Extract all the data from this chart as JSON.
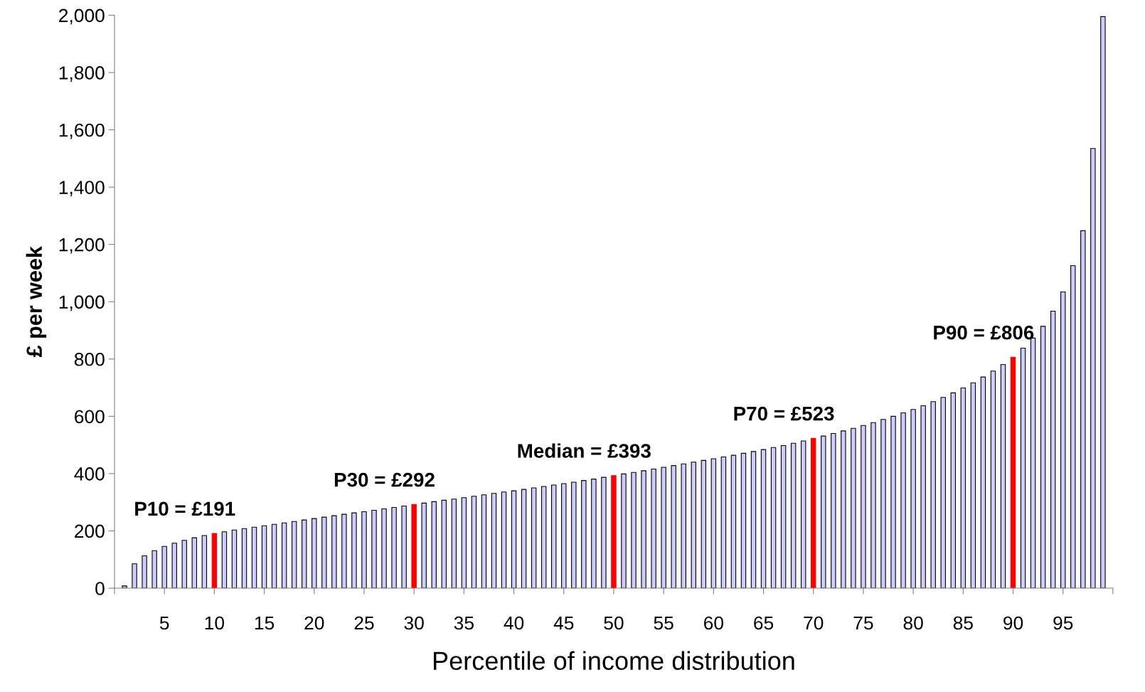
{
  "chart_data": {
    "type": "bar",
    "xlabel": "Percentile of income distribution",
    "ylabel": "£ per week",
    "x": [
      1,
      2,
      3,
      4,
      5,
      6,
      7,
      8,
      9,
      10,
      11,
      12,
      13,
      14,
      15,
      16,
      17,
      18,
      19,
      20,
      21,
      22,
      23,
      24,
      25,
      26,
      27,
      28,
      29,
      30,
      31,
      32,
      33,
      34,
      35,
      36,
      37,
      38,
      39,
      40,
      41,
      42,
      43,
      44,
      45,
      46,
      47,
      48,
      49,
      50,
      51,
      52,
      53,
      54,
      55,
      56,
      57,
      58,
      59,
      60,
      61,
      62,
      63,
      64,
      65,
      66,
      67,
      68,
      69,
      70,
      71,
      72,
      73,
      74,
      75,
      76,
      77,
      78,
      79,
      80,
      81,
      82,
      83,
      84,
      85,
      86,
      87,
      88,
      89,
      90,
      91,
      92,
      93,
      94,
      95,
      96,
      97,
      98,
      99
    ],
    "values": [
      8,
      85,
      113,
      131,
      146,
      157,
      167,
      176,
      184,
      191,
      197,
      203,
      208,
      213,
      218,
      223,
      228,
      233,
      238,
      243,
      248,
      253,
      258,
      263,
      267,
      272,
      277,
      282,
      287,
      292,
      297,
      302,
      307,
      311,
      316,
      321,
      326,
      331,
      336,
      340,
      345,
      350,
      355,
      360,
      365,
      370,
      376,
      381,
      387,
      393,
      399,
      404,
      410,
      416,
      422,
      428,
      434,
      440,
      446,
      452,
      458,
      464,
      471,
      477,
      484,
      491,
      498,
      506,
      514,
      523,
      531,
      540,
      549,
      558,
      568,
      578,
      589,
      600,
      612,
      624,
      637,
      651,
      666,
      682,
      699,
      717,
      737,
      758,
      781,
      806,
      838,
      873,
      914,
      967,
      1034,
      1126,
      1248,
      1535,
      1995
    ],
    "colors": [
      "#ccccff",
      "#ccccff",
      "#ccccff",
      "#ccccff",
      "#ccccff",
      "#ccccff",
      "#ccccff",
      "#ccccff",
      "#ccccff",
      "#ff0000",
      "#ccccff",
      "#ccccff",
      "#ccccff",
      "#ccccff",
      "#ccccff",
      "#ccccff",
      "#ccccff",
      "#ccccff",
      "#ccccff",
      "#ccccff",
      "#ccccff",
      "#ccccff",
      "#ccccff",
      "#ccccff",
      "#ccccff",
      "#ccccff",
      "#ccccff",
      "#ccccff",
      "#ccccff",
      "#ff0000",
      "#ccccff",
      "#ccccff",
      "#ccccff",
      "#ccccff",
      "#ccccff",
      "#ccccff",
      "#ccccff",
      "#ccccff",
      "#ccccff",
      "#ccccff",
      "#ccccff",
      "#ccccff",
      "#ccccff",
      "#ccccff",
      "#ccccff",
      "#ccccff",
      "#ccccff",
      "#ccccff",
      "#ccccff",
      "#ff0000",
      "#ccccff",
      "#ccccff",
      "#ccccff",
      "#ccccff",
      "#ccccff",
      "#ccccff",
      "#ccccff",
      "#ccccff",
      "#ccccff",
      "#ccccff",
      "#ccccff",
      "#ccccff",
      "#ccccff",
      "#ccccff",
      "#ccccff",
      "#ccccff",
      "#ccccff",
      "#ccccff",
      "#ccccff",
      "#ff0000",
      "#ccccff",
      "#ccccff",
      "#ccccff",
      "#ccccff",
      "#ccccff",
      "#ccccff",
      "#ccccff",
      "#ccccff",
      "#ccccff",
      "#ccccff",
      "#ccccff",
      "#ccccff",
      "#ccccff",
      "#ccccff",
      "#ccccff",
      "#ccccff",
      "#ccccff",
      "#ccccff",
      "#ccccff",
      "#ff0000",
      "#ccccff",
      "#ccccff",
      "#ccccff",
      "#ccccff",
      "#ccccff",
      "#ccccff",
      "#ccccff",
      "#ccccff",
      "#ccccff"
    ],
    "annotations": [
      {
        "text": "P10 = £191",
        "x": 10,
        "y": 191
      },
      {
        "text": "P30 = £292",
        "x": 30,
        "y": 292
      },
      {
        "text": "Median = £393",
        "x": 50,
        "y": 393
      },
      {
        "text": "P70 = £523",
        "x": 70,
        "y": 523
      },
      {
        "text": "P90 = £806",
        "x": 90,
        "y": 806
      }
    ],
    "xlim": [
      0,
      100
    ],
    "xticks": [
      {
        "value": 0,
        "label": null
      },
      5,
      10,
      15,
      20,
      25,
      30,
      35,
      40,
      45,
      50,
      55,
      60,
      65,
      70,
      75,
      80,
      85,
      90,
      95,
      {
        "value": 100,
        "label": null
      }
    ],
    "ylim": [
      0,
      2000
    ],
    "yticks": [
      0,
      {
        "value": 200,
        "label": "200"
      },
      {
        "value": 400,
        "label": "400"
      },
      {
        "value": 600,
        "label": "600"
      },
      {
        "value": 800,
        "label": "800"
      },
      {
        "value": 1000,
        "label": "1,000"
      },
      {
        "value": 1200,
        "label": "1,200"
      },
      {
        "value": 1400,
        "label": "1,400"
      },
      {
        "value": 1600,
        "label": "1,600"
      },
      {
        "value": 1800,
        "label": "1,800"
      },
      {
        "value": 2000,
        "label": "2,000"
      }
    ],
    "grid": false,
    "legend": false
  }
}
